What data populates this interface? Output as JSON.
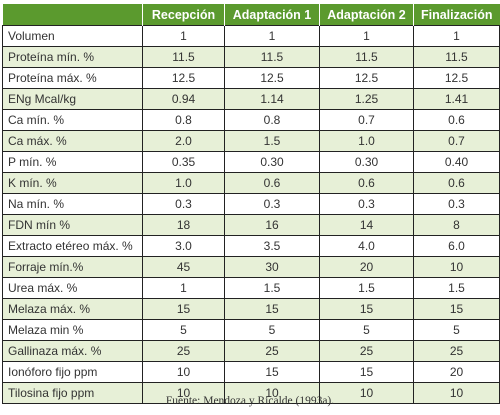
{
  "table": {
    "headers": [
      "",
      "Recepción",
      "Adaptación 1",
      "Adaptación 2",
      "Finalización"
    ],
    "rows": [
      [
        "Volumen",
        "1",
        "1",
        "1",
        "1"
      ],
      [
        "Proteína mín. %",
        "11.5",
        "11.5",
        "11.5",
        "11.5"
      ],
      [
        "Proteína máx. %",
        "12.5",
        "12.5",
        "12.5",
        "12.5"
      ],
      [
        "ENg Mcal/kg",
        "0.94",
        "1.14",
        "1.25",
        "1.41"
      ],
      [
        "Ca mín. %",
        "0.8",
        "0.8",
        "0.7",
        "0.6"
      ],
      [
        "Ca máx. %",
        "2.0",
        "1.5",
        "1.0",
        "0.7"
      ],
      [
        "P mín. %",
        "0.35",
        "0.30",
        "0.30",
        "0.40"
      ],
      [
        "K mín. %",
        "1.0",
        "0.6",
        "0.6",
        "0.6"
      ],
      [
        "Na mín. %",
        "0.3",
        "0.3",
        "0.3",
        "0.3"
      ],
      [
        "FDN mín %",
        "18",
        "16",
        "14",
        "8"
      ],
      [
        "Extracto etéreo máx. %",
        "3.0",
        "3.5",
        "4.0",
        "6.0"
      ],
      [
        "Forraje mín.%",
        "45",
        "30",
        "20",
        "10"
      ],
      [
        "Urea máx. %",
        "1",
        "1.5",
        "1.5",
        "1.5"
      ],
      [
        "Melaza máx. %",
        "15",
        "15",
        "15",
        "15"
      ],
      [
        "Melaza min %",
        "5",
        "5",
        "5",
        "5"
      ],
      [
        "Gallinaza máx. %",
        "25",
        "25",
        "25",
        "25"
      ],
      [
        "Ionóforo fijo ppm",
        "10",
        "15",
        "15",
        "20"
      ],
      [
        "Tilosina fijo ppm",
        "10",
        "10",
        "10",
        "10"
      ]
    ]
  },
  "source": "Fuente: Mendoza y Ricalde (1993a).",
  "colors": {
    "header_bg": "#5b9a2e",
    "row_shaded": "#e7f0d7",
    "row_plain": "#ffffff"
  }
}
